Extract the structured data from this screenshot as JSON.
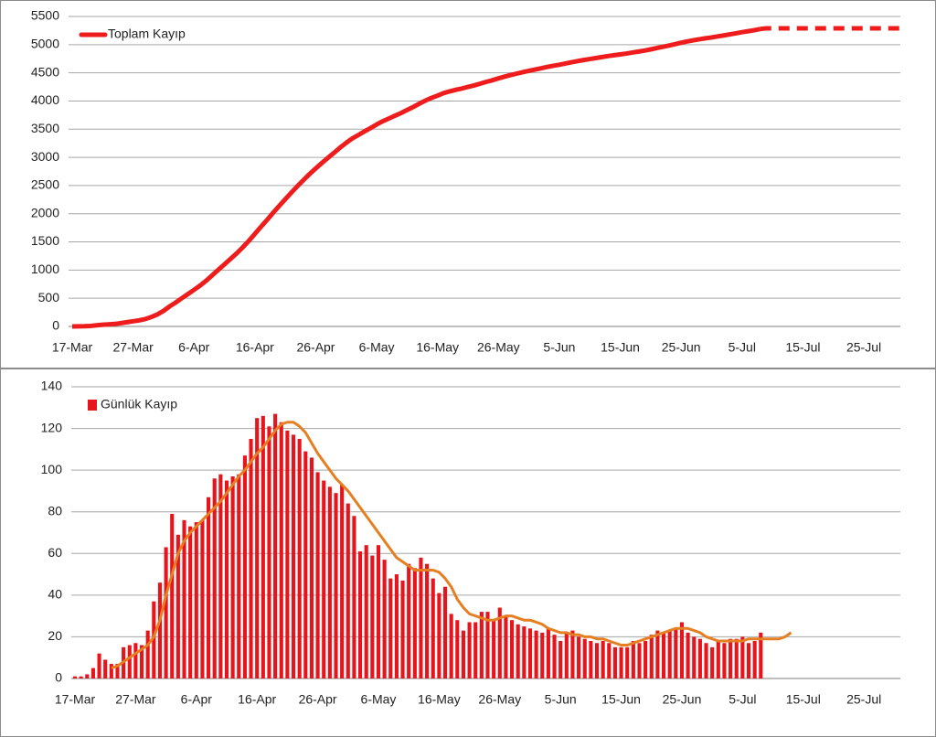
{
  "chart_data": [
    {
      "type": "line",
      "categories": [
        "17-Mar",
        null,
        null,
        null,
        null,
        null,
        null,
        null,
        null,
        null,
        "27-Mar",
        null,
        null,
        null,
        null,
        null,
        null,
        null,
        null,
        null,
        "6-Apr",
        null,
        null,
        null,
        null,
        null,
        null,
        null,
        null,
        null,
        "16-Apr",
        null,
        null,
        null,
        null,
        null,
        null,
        null,
        null,
        null,
        "26-Apr",
        null,
        null,
        null,
        null,
        null,
        null,
        null,
        null,
        null,
        "6-May",
        null,
        null,
        null,
        null,
        null,
        null,
        null,
        null,
        null,
        "16-May",
        null,
        null,
        null,
        null,
        null,
        null,
        null,
        null,
        null,
        "26-May",
        null,
        null,
        null,
        null,
        null,
        null,
        null,
        null,
        null,
        "5-Jun",
        null,
        null,
        null,
        null,
        null,
        null,
        null,
        null,
        null,
        "15-Jun",
        null,
        null,
        null,
        null,
        null,
        null,
        null,
        null,
        null,
        "25-Jun",
        null,
        null,
        null,
        null,
        null,
        null,
        null,
        null,
        null,
        "5-Jul",
        null,
        null,
        null,
        null,
        null,
        null,
        null,
        null,
        null,
        "15-Jul",
        null,
        null,
        null,
        null,
        null,
        null,
        null,
        null,
        null,
        "25-Jul",
        null,
        null,
        null,
        null,
        null,
        null
      ],
      "series": [
        {
          "name": "Toplam Kayıp",
          "color": "#ee1c1c",
          "values": [
            1,
            2,
            4,
            9,
            21,
            30,
            37,
            44,
            59,
            75,
            92,
            108,
            131,
            168,
            214,
            277,
            356,
            425,
            501,
            574,
            649,
            725,
            812,
            908,
            1006,
            1101,
            1198,
            1296,
            1403,
            1518,
            1643,
            1769,
            1890,
            2017,
            2140,
            2259,
            2376,
            2491,
            2600,
            2706,
            2805,
            2900,
            2992,
            3081,
            3174,
            3258,
            3336,
            3397,
            3461,
            3520,
            3584,
            3641,
            3689,
            3739,
            3786,
            3841,
            3894,
            3952,
            4007,
            4055,
            4096,
            4140,
            4171,
            4199,
            4222,
            4249,
            4276,
            4308,
            4340,
            4368,
            4402,
            4432,
            4460,
            4486,
            4511,
            4535,
            4558,
            4580,
            4604,
            4625,
            4643,
            4665,
            4688,
            4708,
            4727,
            4745,
            4762,
            4780,
            4797,
            4812,
            4827,
            4842,
            4860,
            4877,
            4895,
            4916,
            4939,
            4961,
            4984,
            5008,
            5035,
            5057,
            5077,
            5096,
            5113,
            5128,
            5146,
            5163,
            5182,
            5201,
            5221,
            5238,
            5256,
            5278,
            null,
            null,
            null,
            null,
            null,
            null,
            null,
            null,
            null,
            null,
            null,
            null,
            null,
            null,
            null,
            null,
            null,
            null,
            null,
            null,
            null,
            null,
            null
          ]
        },
        {
          "color": "#ee1c1c",
          "dash": true,
          "values": [
            null,
            null,
            null,
            null,
            null,
            null,
            null,
            null,
            null,
            null,
            null,
            null,
            null,
            null,
            null,
            null,
            null,
            null,
            null,
            null,
            null,
            null,
            null,
            null,
            null,
            null,
            null,
            null,
            null,
            null,
            null,
            null,
            null,
            null,
            null,
            null,
            null,
            null,
            null,
            null,
            null,
            null,
            null,
            null,
            null,
            null,
            null,
            null,
            null,
            null,
            null,
            null,
            null,
            null,
            null,
            null,
            null,
            null,
            null,
            null,
            null,
            null,
            null,
            null,
            null,
            null,
            null,
            null,
            null,
            null,
            null,
            null,
            null,
            null,
            null,
            null,
            null,
            null,
            null,
            null,
            null,
            null,
            null,
            null,
            null,
            null,
            null,
            null,
            null,
            null,
            null,
            null,
            null,
            null,
            null,
            null,
            null,
            null,
            null,
            null,
            null,
            null,
            null,
            null,
            null,
            null,
            null,
            null,
            null,
            null,
            null,
            null,
            null,
            5278,
            5290,
            5290,
            5290,
            5290,
            5290,
            5290,
            5290,
            5290,
            5290,
            5290,
            5290,
            5290,
            5290,
            5290,
            5290,
            5290,
            5290,
            5290,
            5290,
            5290,
            5290,
            5290,
            5290
          ]
        }
      ],
      "ylim": [
        0,
        5500
      ],
      "yticks": [
        0,
        500,
        1000,
        1500,
        2000,
        2500,
        3000,
        3500,
        4000,
        4500,
        5000,
        5500
      ],
      "grid": true,
      "legend": "upper left"
    },
    {
      "type": "bar",
      "categories": [
        "17-Mar",
        null,
        null,
        null,
        null,
        null,
        null,
        null,
        null,
        null,
        "27-Mar",
        null,
        null,
        null,
        null,
        null,
        null,
        null,
        null,
        null,
        "6-Apr",
        null,
        null,
        null,
        null,
        null,
        null,
        null,
        null,
        null,
        "16-Apr",
        null,
        null,
        null,
        null,
        null,
        null,
        null,
        null,
        null,
        "26-Apr",
        null,
        null,
        null,
        null,
        null,
        null,
        null,
        null,
        null,
        "6-May",
        null,
        null,
        null,
        null,
        null,
        null,
        null,
        null,
        null,
        "16-May",
        null,
        null,
        null,
        null,
        null,
        null,
        null,
        null,
        null,
        "26-May",
        null,
        null,
        null,
        null,
        null,
        null,
        null,
        null,
        null,
        "5-Jun",
        null,
        null,
        null,
        null,
        null,
        null,
        null,
        null,
        null,
        "15-Jun",
        null,
        null,
        null,
        null,
        null,
        null,
        null,
        null,
        null,
        "25-Jun",
        null,
        null,
        null,
        null,
        null,
        null,
        null,
        null,
        null,
        "5-Jul",
        null,
        null,
        null,
        null,
        null,
        null,
        null,
        null,
        null,
        "15-Jul",
        null,
        null,
        null,
        null,
        null,
        null,
        null,
        null,
        null,
        "25-Jul",
        null,
        null,
        null,
        null,
        null,
        null
      ],
      "series": [
        {
          "name": "Günlük Kayıp",
          "color": "#e8141b",
          "values": [
            1,
            1,
            2,
            5,
            12,
            9,
            7,
            7,
            15,
            16,
            17,
            16,
            23,
            37,
            46,
            63,
            79,
            69,
            76,
            73,
            75,
            76,
            87,
            96,
            98,
            95,
            97,
            98,
            107,
            115,
            125,
            126,
            121,
            127,
            123,
            119,
            117,
            115,
            109,
            106,
            99,
            95,
            92,
            89,
            93,
            84,
            78,
            61,
            64,
            59,
            64,
            57,
            48,
            50,
            47,
            55,
            53,
            58,
            55,
            48,
            41,
            44,
            31,
            28,
            23,
            27,
            27,
            32,
            32,
            28,
            34,
            30,
            28,
            26,
            25,
            24,
            23,
            22,
            24,
            21,
            18,
            22,
            23,
            20,
            19,
            18,
            17,
            18,
            17,
            15,
            15,
            15,
            18,
            17,
            18,
            21,
            23,
            22,
            23,
            24,
            27,
            22,
            20,
            19,
            17,
            15,
            18,
            17,
            19,
            19,
            20,
            17,
            18,
            22,
            null,
            null,
            null,
            null,
            null,
            null,
            null,
            null,
            null,
            null,
            null,
            null,
            null,
            null,
            null,
            null,
            null,
            null,
            null,
            null,
            null,
            null,
            null
          ]
        },
        {
          "type": "line",
          "color": "#e67e22",
          "values": [
            null,
            null,
            null,
            null,
            null,
            null,
            5,
            6,
            8,
            10,
            12,
            14,
            16,
            20,
            28,
            40,
            50,
            60,
            66,
            70,
            73,
            76,
            79,
            82,
            85,
            89,
            93,
            97,
            100,
            104,
            108,
            111,
            115,
            119,
            122,
            123,
            123,
            121,
            118,
            113,
            108,
            104,
            100,
            96,
            93,
            90,
            86,
            82,
            78,
            74,
            70,
            66,
            62,
            58,
            56,
            54,
            52,
            52,
            52,
            52,
            51,
            48,
            44,
            38,
            34,
            31,
            30,
            29,
            28,
            28,
            29,
            30,
            30,
            29,
            28,
            28,
            27,
            26,
            24,
            23,
            22,
            22,
            21,
            21,
            20,
            20,
            19,
            19,
            18,
            17,
            16,
            16,
            17,
            18,
            19,
            20,
            21,
            22,
            23,
            24,
            24,
            24,
            23,
            22,
            20,
            19,
            18,
            18,
            18,
            18,
            18,
            19,
            19,
            19,
            19,
            19,
            19,
            20,
            22,
            null,
            null,
            null,
            null,
            null,
            null,
            null,
            null,
            null,
            null,
            null,
            null,
            null,
            null,
            null,
            null,
            null,
            null
          ]
        }
      ],
      "ylim": [
        0,
        140
      ],
      "yticks": [
        0,
        20,
        40,
        60,
        80,
        100,
        120,
        140
      ],
      "grid": true,
      "legend": "upper left"
    }
  ]
}
